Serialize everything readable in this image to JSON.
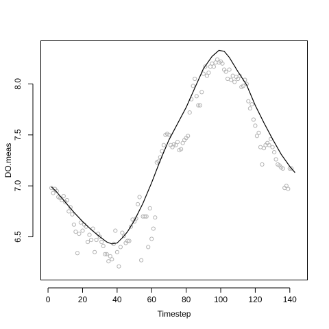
{
  "chart_data": {
    "type": "scatter",
    "title": "",
    "xlabel": "Timestep",
    "ylabel": "DO.meas",
    "xlim": [
      -4,
      150
    ],
    "ylim": [
      6.08,
      8.42
    ],
    "xticks": [
      0,
      20,
      40,
      60,
      80,
      100,
      120,
      140
    ],
    "yticks": [
      6.5,
      7.0,
      7.5,
      8.0
    ],
    "ytick_labels": [
      "6.5",
      "7.0",
      "7.5",
      "8.0"
    ],
    "grid": false,
    "legend": "none",
    "series": [
      {
        "kind": "points",
        "marker": "open-circle",
        "color": "#b3b3b3",
        "points": [
          [
            2,
            6.98
          ],
          [
            3,
            6.93
          ],
          [
            4,
            6.97
          ],
          [
            5,
            6.95
          ],
          [
            6,
            6.89
          ],
          [
            7,
            6.88
          ],
          [
            8,
            6.86
          ],
          [
            9,
            6.9
          ],
          [
            10,
            6.84
          ],
          [
            11,
            6.86
          ],
          [
            12,
            6.75
          ],
          [
            13,
            6.79
          ],
          [
            14,
            6.72
          ],
          [
            15,
            6.62
          ],
          [
            16,
            6.55
          ],
          [
            17,
            6.34
          ],
          [
            18,
            6.53
          ],
          [
            19,
            6.64
          ],
          [
            20,
            6.56
          ],
          [
            21,
            6.62
          ],
          [
            22,
            6.6
          ],
          [
            23,
            6.45
          ],
          [
            24,
            6.52
          ],
          [
            25,
            6.47
          ],
          [
            26,
            6.58
          ],
          [
            27,
            6.35
          ],
          [
            28,
            6.47
          ],
          [
            29,
            6.53
          ],
          [
            30,
            6.5
          ],
          [
            31,
            6.45
          ],
          [
            32,
            6.41
          ],
          [
            33,
            6.33
          ],
          [
            34,
            6.33
          ],
          [
            35,
            6.26
          ],
          [
            36,
            6.31
          ],
          [
            37,
            6.28
          ],
          [
            38,
            6.43
          ],
          [
            39,
            6.56
          ],
          [
            40,
            6.35
          ],
          [
            41,
            6.21
          ],
          [
            42,
            6.4
          ],
          [
            43,
            6.54
          ],
          [
            44,
            6.51
          ],
          [
            45,
            6.44
          ],
          [
            46,
            6.46
          ],
          [
            47,
            6.46
          ],
          [
            48,
            6.6
          ],
          [
            49,
            6.67
          ],
          [
            50,
            6.65
          ],
          [
            51,
            6.68
          ],
          [
            52,
            6.82
          ],
          [
            53,
            6.89
          ],
          [
            54,
            6.27
          ],
          [
            55,
            6.7
          ],
          [
            56,
            6.7
          ],
          [
            57,
            6.7
          ],
          [
            58,
            6.4
          ],
          [
            59,
            6.78
          ],
          [
            60,
            6.48
          ],
          [
            61,
            6.58
          ],
          [
            62,
            6.69
          ],
          [
            63,
            7.23
          ],
          [
            64,
            7.24
          ],
          [
            65,
            7.28
          ],
          [
            66,
            7.34
          ],
          [
            67,
            7.4
          ],
          [
            68,
            7.5
          ],
          [
            69,
            7.51
          ],
          [
            70,
            7.5
          ],
          [
            71,
            7.4
          ],
          [
            72,
            7.38
          ],
          [
            73,
            7.41
          ],
          [
            74,
            7.4
          ],
          [
            75,
            7.43
          ],
          [
            76,
            7.35
          ],
          [
            77,
            7.36
          ],
          [
            78,
            7.42
          ],
          [
            79,
            7.45
          ],
          [
            80,
            7.47
          ],
          [
            81,
            7.49
          ],
          [
            82,
            7.72
          ],
          [
            83,
            7.85
          ],
          [
            84,
            7.98
          ],
          [
            85,
            8.05
          ],
          [
            86,
            7.88
          ],
          [
            87,
            7.79
          ],
          [
            88,
            7.79
          ],
          [
            89,
            7.92
          ],
          [
            90,
            8.1
          ],
          [
            91,
            8.17
          ],
          [
            92,
            8.08
          ],
          [
            93,
            8.11
          ],
          [
            94,
            8.17
          ],
          [
            95,
            8.2
          ],
          [
            96,
            8.17
          ],
          [
            97,
            8.21
          ],
          [
            98,
            8.24
          ],
          [
            99,
            8.21
          ],
          [
            100,
            8.22
          ],
          [
            101,
            8.2
          ],
          [
            102,
            8.14
          ],
          [
            103,
            8.12
          ],
          [
            104,
            8.05
          ],
          [
            105,
            8.14
          ],
          [
            106,
            8.04
          ],
          [
            107,
            8.08
          ],
          [
            108,
            8.02
          ],
          [
            109,
            8.07
          ],
          [
            110,
            8.05
          ],
          [
            111,
            8.08
          ],
          [
            112,
            7.97
          ],
          [
            113,
            7.98
          ],
          [
            114,
            8.04
          ],
          [
            115,
            8.0
          ],
          [
            116,
            7.83
          ],
          [
            117,
            7.76
          ],
          [
            118,
            7.8
          ],
          [
            119,
            7.65
          ],
          [
            120,
            7.59
          ],
          [
            121,
            7.49
          ],
          [
            122,
            7.52
          ],
          [
            123,
            7.38
          ],
          [
            124,
            7.21
          ],
          [
            125,
            7.37
          ],
          [
            126,
            7.4
          ],
          [
            127,
            7.42
          ],
          [
            128,
            7.4
          ],
          [
            129,
            7.46
          ],
          [
            130,
            7.38
          ],
          [
            131,
            7.33
          ],
          [
            132,
            7.26
          ],
          [
            133,
            7.21
          ],
          [
            134,
            7.2
          ],
          [
            135,
            7.18
          ],
          [
            136,
            7.17
          ],
          [
            137,
            6.98
          ],
          [
            138,
            7.0
          ],
          [
            139,
            6.97
          ],
          [
            140,
            7.17
          ],
          [
            141,
            7.17
          ]
        ]
      },
      {
        "kind": "line",
        "color": "#000000",
        "points": [
          [
            2,
            6.99
          ],
          [
            5,
            6.94
          ],
          [
            10,
            6.84
          ],
          [
            15,
            6.74
          ],
          [
            20,
            6.65
          ],
          [
            25,
            6.57
          ],
          [
            30,
            6.5
          ],
          [
            34,
            6.45
          ],
          [
            37,
            6.43
          ],
          [
            40,
            6.44
          ],
          [
            43,
            6.49
          ],
          [
            46,
            6.55
          ],
          [
            50,
            6.66
          ],
          [
            55,
            6.83
          ],
          [
            60,
            7.03
          ],
          [
            65,
            7.25
          ],
          [
            70,
            7.45
          ],
          [
            75,
            7.61
          ],
          [
            80,
            7.77
          ],
          [
            85,
            7.96
          ],
          [
            90,
            8.15
          ],
          [
            95,
            8.27
          ],
          [
            99,
            8.33
          ],
          [
            102,
            8.32
          ],
          [
            105,
            8.26
          ],
          [
            110,
            8.12
          ],
          [
            115,
            7.99
          ],
          [
            120,
            7.79
          ],
          [
            125,
            7.62
          ],
          [
            130,
            7.46
          ],
          [
            135,
            7.31
          ],
          [
            140,
            7.19
          ],
          [
            143,
            7.13
          ]
        ]
      }
    ]
  }
}
